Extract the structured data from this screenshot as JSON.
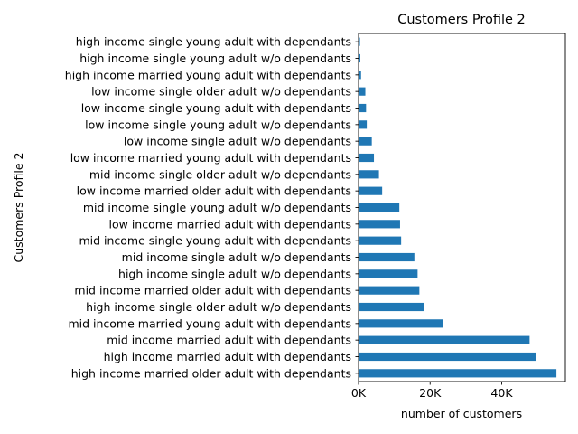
{
  "chart_data": {
    "type": "bar",
    "orientation": "horizontal",
    "title": "Customers Profile 2",
    "xlabel": "number of customers",
    "ylabel": "Customers Profile 2",
    "xlim": [
      0,
      57800
    ],
    "xticks": [
      0,
      20000,
      40000
    ],
    "xtick_labels": [
      "0K",
      "20K",
      "40K"
    ],
    "bar_color": "#1f77b4",
    "grid": false,
    "legend": "none",
    "categories": [
      "high income married older adult with dependants",
      "high income married adult with dependants",
      "mid income married adult with dependants",
      "mid income married young adult with dependants",
      "high income single older adult w/o dependants",
      "mid income married older adult with dependants",
      "high income single adult w/o dependants",
      "mid income single adult w/o dependants",
      "mid income single young adult with dependants",
      "low income married adult with dependants",
      "mid income single young adult w/o dependants",
      "low income married older adult with dependants",
      "mid income single older adult w/o dependants",
      "low income married young adult with dependants",
      "low income single adult w/o dependants",
      "low income single young adult w/o dependants",
      "low income single young adult with dependants",
      "low income single older adult w/o dependants",
      "high income married young adult with dependants",
      "high income single young adult w/o dependants",
      "high income single young adult with dependants"
    ],
    "values": [
      55300,
      49600,
      47800,
      23500,
      18300,
      17000,
      16500,
      15600,
      11900,
      11600,
      11400,
      6600,
      5700,
      4300,
      3700,
      2300,
      2100,
      1900,
      700,
      500,
      400
    ]
  }
}
